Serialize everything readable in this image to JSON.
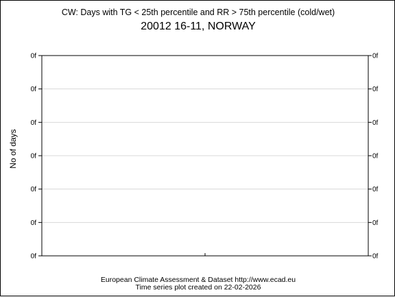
{
  "chart_data": {
    "type": "bar",
    "title": "CW: Days with TG < 25th percentile and RR > 75th percentile (cold/wet)",
    "subtitle": "20012 16-11, NORWAY",
    "ylabel": "No of days",
    "xlabel": "",
    "y_tick_labels": [
      "0f",
      "0f",
      "0f",
      "0f",
      "0f",
      "0f",
      "0f"
    ],
    "x_ticks": [
      0.5
    ],
    "categories": [],
    "values": [],
    "grid": true,
    "ticks_mirrored_right": true
  },
  "footer": {
    "line1": "European Climate Assessment & Dataset  http://www.ecad.eu",
    "line2": "Time series plot created on 22-02-2026"
  }
}
